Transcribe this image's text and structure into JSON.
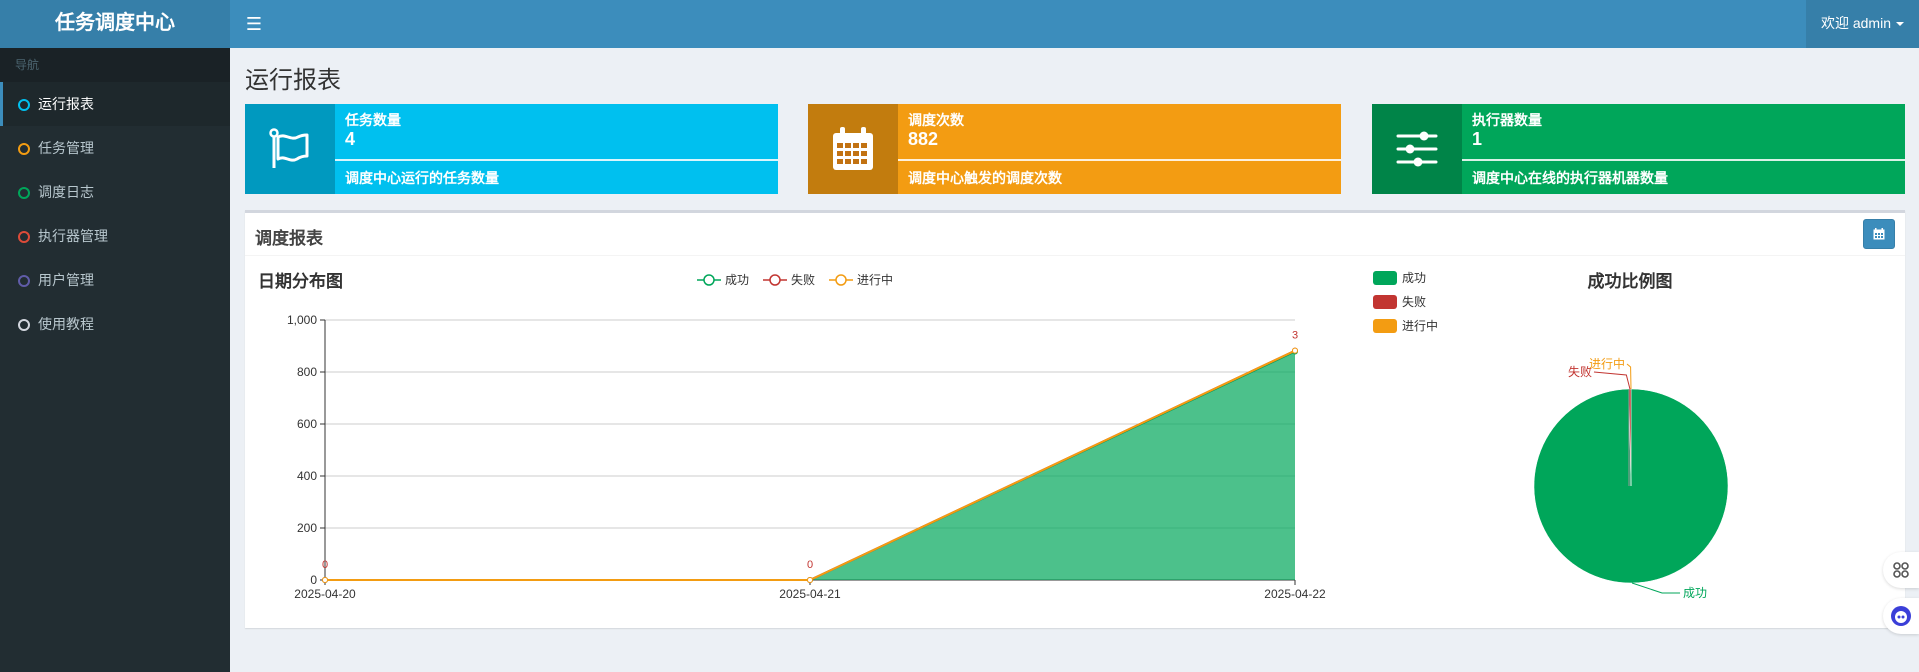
{
  "app": {
    "logo": "任务调度中心",
    "user": "欢迎 admin"
  },
  "sidebar": {
    "header": "导航",
    "items": [
      {
        "label": "运行报表",
        "color": "#00c0ef",
        "active": true
      },
      {
        "label": "任务管理",
        "color": "#f39c12"
      },
      {
        "label": "调度日志",
        "color": "#00a65a"
      },
      {
        "label": "执行器管理",
        "color": "#dd4b39"
      },
      {
        "label": "用户管理",
        "color": "#605ca8"
      },
      {
        "label": "使用教程",
        "color": "#d2d6de"
      }
    ]
  },
  "page": {
    "title": "运行报表"
  },
  "stats": [
    {
      "label": "任务数量",
      "value": "4",
      "desc": "调度中心运行的任务数量",
      "color": "#00c0ef",
      "icon": "flag-icon"
    },
    {
      "label": "调度次数",
      "value": "882",
      "desc": "调度中心触发的调度次数",
      "color": "#f39c12",
      "icon": "calendar-icon"
    },
    {
      "label": "执行器数量",
      "value": "1",
      "desc": "调度中心在线的执行器机器数量",
      "color": "#00a65a",
      "icon": "sliders-icon"
    }
  ],
  "report": {
    "title": "调度报表",
    "range_button_icon": "calendar-icon"
  },
  "chart_data": [
    {
      "type": "area",
      "title": "日期分布图",
      "x": [
        "2025-04-20",
        "2025-04-21",
        "2025-04-22"
      ],
      "series": [
        {
          "name": "成功",
          "values": [
            0,
            0,
            879
          ],
          "color": "#00a65a"
        },
        {
          "name": "失败",
          "values": [
            0,
            0,
            3
          ],
          "color": "#c23531"
        },
        {
          "name": "进行中",
          "values": [
            0,
            0,
            0
          ],
          "color": "#f39c12"
        }
      ],
      "point_labels": [
        "0",
        "0",
        "3"
      ],
      "ylim": [
        0,
        1000
      ],
      "yticks": [
        "0",
        "200",
        "400",
        "600",
        "800",
        "1,000"
      ],
      "stacked": true,
      "legend": "top-center",
      "grid": true
    },
    {
      "type": "pie",
      "title": "成功比例图",
      "slices": [
        {
          "name": "成功",
          "value": 879,
          "color": "#00a65a"
        },
        {
          "name": "失败",
          "value": 3,
          "color": "#c23531"
        },
        {
          "name": "进行中",
          "value": 0,
          "color": "#f39c12"
        }
      ],
      "legend": "top-left"
    }
  ]
}
